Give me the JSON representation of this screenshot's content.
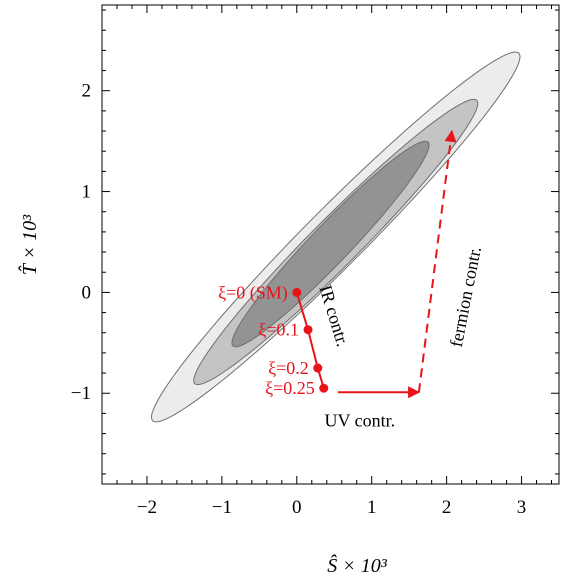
{
  "chart_data": {
    "type": "scatter",
    "xlabel": "Ŝ × 10³",
    "ylabel": "T̂ × 10³",
    "xlim": [
      -2.6,
      3.5
    ],
    "ylim": [
      -1.9,
      2.85
    ],
    "x_ticks": [
      -2,
      -1,
      0,
      1,
      2,
      3
    ],
    "y_ticks": [
      -1,
      0,
      1,
      2
    ],
    "x_tick_labels": [
      "−2",
      "−1",
      "0",
      "1",
      "2",
      "3"
    ],
    "y_tick_labels": [
      "−1",
      "0",
      "1",
      "2"
    ],
    "grid": false,
    "contours": [
      {
        "level": "outer",
        "center": [
          0.52,
          0.55
        ],
        "semi_major": 3.05,
        "semi_minor": 0.33,
        "angle_deg": 36.5,
        "fill": "#ececec"
      },
      {
        "level": "middle",
        "center": [
          0.52,
          0.5
        ],
        "semi_major": 2.35,
        "semi_minor": 0.27,
        "angle_deg": 36.5,
        "fill": "#c4c4c4"
      },
      {
        "level": "inner",
        "center": [
          0.45,
          0.48
        ],
        "semi_major": 1.65,
        "semi_minor": 0.22,
        "angle_deg": 37.5,
        "fill": "#939393"
      }
    ],
    "xi_trajectory": {
      "points": [
        {
          "x": 0.0,
          "y": 0.0,
          "label": "ξ=0  (SM)"
        },
        {
          "x": 0.15,
          "y": -0.37,
          "label": "ξ=0.1"
        },
        {
          "x": 0.28,
          "y": -0.75,
          "label": "ξ=0.2"
        },
        {
          "x": 0.36,
          "y": -0.95,
          "label": "ξ=0.25"
        }
      ],
      "color": "#e8141a"
    },
    "arrows": [
      {
        "name": "uv",
        "from": [
          0.55,
          -0.99
        ],
        "to": [
          1.63,
          -0.99
        ],
        "style": "solid",
        "color": "#e8141a"
      },
      {
        "name": "fermion",
        "from": [
          1.63,
          -0.99
        ],
        "to": [
          2.07,
          1.6
        ],
        "style": "dashed",
        "color": "#e8141a"
      }
    ],
    "annotations": [
      {
        "name": "ir",
        "text": "IR contr.",
        "x": 0.3,
        "y": 0.05,
        "rotate_deg": 73
      },
      {
        "name": "uv",
        "text": "UV contr.",
        "x": 0.37,
        "y": -1.33,
        "rotate_deg": 0
      },
      {
        "name": "fermion",
        "text": "fermion contr.",
        "x": 2.2,
        "y": -0.55,
        "rotate_deg": -79
      }
    ]
  }
}
